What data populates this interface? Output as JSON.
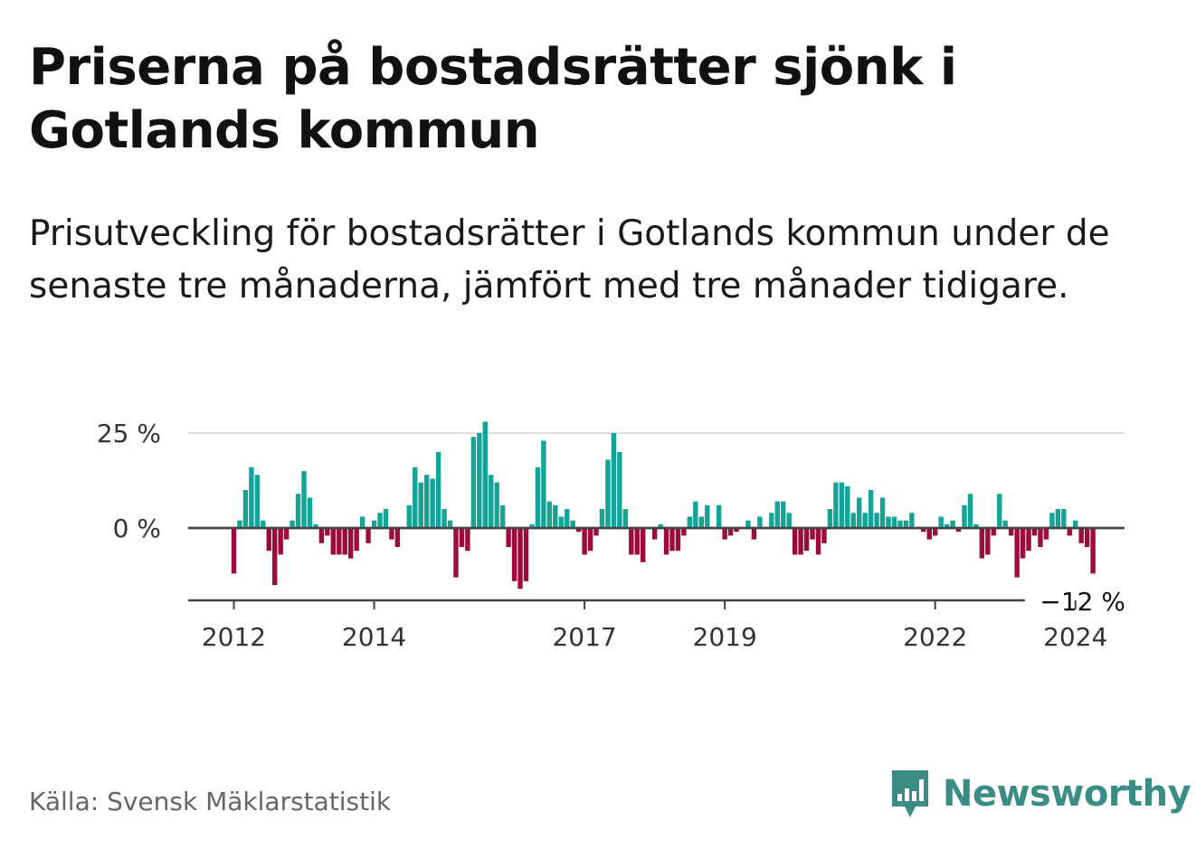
{
  "header": {
    "title": "Priserna på bostadsrätter sjönk i Gotlands kommun",
    "subtitle": "Prisutveckling för bostadsrätter i Gotlands kommun under de senaste tre månaderna, jämfört med tre månader tidigare."
  },
  "footer": {
    "source": "Källa: Svensk Mäklarstatistik",
    "brand": "Newsworthy"
  },
  "colors": {
    "positive": "#14a397",
    "negative": "#9c0a3e",
    "brand": "#3a8c84"
  },
  "chart_data": {
    "type": "bar",
    "start": "2012-01",
    "end_label": "−12 %",
    "y_ticks": [
      {
        "value": 25,
        "label": "25 %"
      },
      {
        "value": 0,
        "label": "0 %"
      }
    ],
    "x_ticks": [
      {
        "label": "2012",
        "month_index": 0
      },
      {
        "label": "2014",
        "month_index": 24
      },
      {
        "label": "2017",
        "month_index": 60
      },
      {
        "label": "2019",
        "month_index": 84
      },
      {
        "label": "2022",
        "month_index": 120
      },
      {
        "label": "2024",
        "month_index": 144
      }
    ],
    "ylim": [
      -19,
      27
    ],
    "values": [
      -12,
      2,
      10,
      16,
      14,
      2,
      -6,
      -15,
      -7,
      -3,
      2,
      9,
      15,
      8,
      1,
      -4,
      -2,
      -7,
      -7,
      -7,
      -8,
      -6,
      3,
      -4,
      2,
      4,
      5,
      -3,
      -5,
      0,
      6,
      16,
      12,
      14,
      13,
      20,
      5,
      2,
      -13,
      -5,
      -6,
      24,
      25,
      28,
      14,
      12,
      6,
      -5,
      -14,
      -16,
      -14,
      1,
      16,
      23,
      7,
      6,
      3,
      5,
      2,
      -1,
      -7,
      -6,
      -2,
      5,
      18,
      25,
      20,
      5,
      -7,
      -7,
      -9,
      0,
      -3,
      1,
      -7,
      -6,
      -6,
      -2,
      3,
      7,
      3,
      6,
      0,
      6,
      -3,
      -2,
      -1,
      0,
      2,
      -3,
      3,
      0,
      4,
      7,
      7,
      4,
      -7,
      -7,
      -6,
      -3,
      -7,
      -4,
      5,
      12,
      12,
      11,
      4,
      8,
      4,
      10,
      4,
      8,
      3,
      3,
      2,
      2,
      4,
      0,
      -1,
      -3,
      -2,
      3,
      1,
      2,
      -1,
      6,
      9,
      1,
      -8,
      -7,
      -2,
      9,
      2,
      -2,
      -13,
      -8,
      -6,
      -2,
      -5,
      -3,
      4,
      5,
      5,
      -2,
      2,
      -4,
      -5,
      -12
    ]
  }
}
